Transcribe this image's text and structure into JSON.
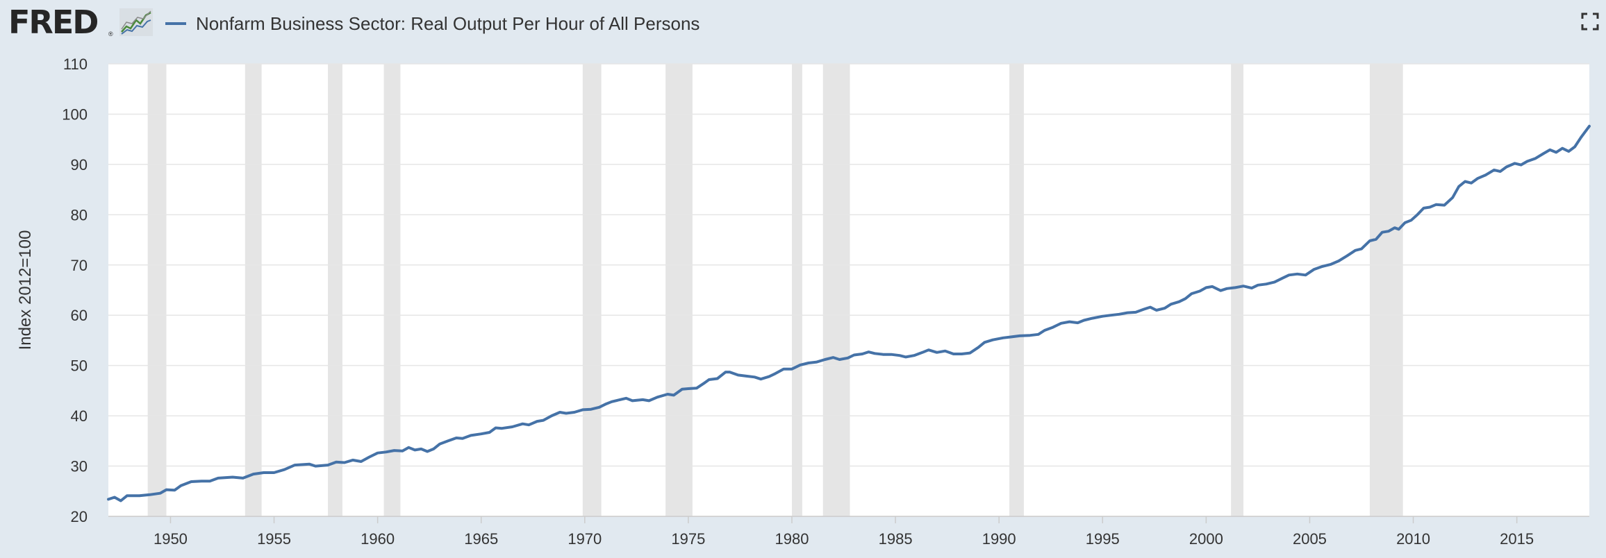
{
  "header": {
    "logo_text": "FRED",
    "logo_registered": "®",
    "logo_graph_icon": "line-chart-icon",
    "series_title": "Nonfarm Business Sector: Real Output Per Hour of All Persons",
    "fullscreen_icon": "fullscreen-icon"
  },
  "colors": {
    "background": "#e1e9f0",
    "plot_background": "#ffffff",
    "series_line": "#4572a7",
    "recession_shade": "#e5e5e5",
    "gridline": "#e6e6e6",
    "text": "#333333"
  },
  "chart_data": {
    "type": "line",
    "title": "",
    "xlabel": "",
    "ylabel": "Index 2012=100",
    "xlim": [
      1947.0,
      2018.5
    ],
    "ylim": [
      20,
      110
    ],
    "grid": true,
    "legend": "top-left",
    "y_ticks": [
      20,
      30,
      40,
      50,
      60,
      70,
      80,
      90,
      100,
      110
    ],
    "x_ticks": [
      1950,
      1955,
      1960,
      1965,
      1970,
      1975,
      1980,
      1985,
      1990,
      1995,
      2000,
      2005,
      2010,
      2015
    ],
    "recessions": [
      [
        1948.9,
        1949.8
      ],
      [
        1953.6,
        1954.4
      ],
      [
        1957.6,
        1958.3
      ],
      [
        1960.3,
        1961.1
      ],
      [
        1969.9,
        1970.8
      ],
      [
        1973.9,
        1975.2
      ],
      [
        1980.0,
        1980.5
      ],
      [
        1981.5,
        1982.8
      ],
      [
        1990.5,
        1991.2
      ],
      [
        2001.2,
        2001.8
      ],
      [
        2007.9,
        2009.5
      ]
    ],
    "series": [
      {
        "name": "Nonfarm Business Sector: Real Output Per Hour of All Persons",
        "points": [
          [
            1947.0,
            23.4
          ],
          [
            1947.3,
            23.8
          ],
          [
            1947.6,
            23.1
          ],
          [
            1947.9,
            24.1
          ],
          [
            1948.5,
            24.1
          ],
          [
            1949.0,
            24.3
          ],
          [
            1949.5,
            24.6
          ],
          [
            1949.8,
            25.3
          ],
          [
            1950.2,
            25.2
          ],
          [
            1950.5,
            26.1
          ],
          [
            1951.0,
            26.9
          ],
          [
            1951.5,
            27.0
          ],
          [
            1951.9,
            27.0
          ],
          [
            1952.3,
            27.6
          ],
          [
            1953.0,
            27.8
          ],
          [
            1953.5,
            27.6
          ],
          [
            1954.0,
            28.4
          ],
          [
            1954.5,
            28.7
          ],
          [
            1955.0,
            28.7
          ],
          [
            1955.5,
            29.3
          ],
          [
            1956.0,
            30.2
          ],
          [
            1956.7,
            30.4
          ],
          [
            1957.0,
            30.0
          ],
          [
            1957.6,
            30.2
          ],
          [
            1958.0,
            30.8
          ],
          [
            1958.4,
            30.7
          ],
          [
            1958.8,
            31.2
          ],
          [
            1959.2,
            30.9
          ],
          [
            1959.6,
            31.8
          ],
          [
            1960.0,
            32.6
          ],
          [
            1960.4,
            32.8
          ],
          [
            1960.8,
            33.1
          ],
          [
            1961.2,
            33.0
          ],
          [
            1961.5,
            33.7
          ],
          [
            1961.8,
            33.2
          ],
          [
            1962.1,
            33.4
          ],
          [
            1962.4,
            32.9
          ],
          [
            1962.7,
            33.4
          ],
          [
            1963.0,
            34.4
          ],
          [
            1963.4,
            35.0
          ],
          [
            1963.8,
            35.6
          ],
          [
            1964.1,
            35.5
          ],
          [
            1964.5,
            36.1
          ],
          [
            1965.0,
            36.4
          ],
          [
            1965.4,
            36.7
          ],
          [
            1965.7,
            37.6
          ],
          [
            1966.0,
            37.5
          ],
          [
            1966.5,
            37.8
          ],
          [
            1967.0,
            38.4
          ],
          [
            1967.3,
            38.2
          ],
          [
            1967.7,
            38.9
          ],
          [
            1968.0,
            39.1
          ],
          [
            1968.4,
            40.0
          ],
          [
            1968.8,
            40.7
          ],
          [
            1969.1,
            40.5
          ],
          [
            1969.5,
            40.7
          ],
          [
            1969.9,
            41.2
          ],
          [
            1970.3,
            41.3
          ],
          [
            1970.7,
            41.7
          ],
          [
            1971.0,
            42.3
          ],
          [
            1971.3,
            42.8
          ],
          [
            1971.7,
            43.2
          ],
          [
            1972.0,
            43.5
          ],
          [
            1972.3,
            43.0
          ],
          [
            1972.8,
            43.2
          ],
          [
            1973.1,
            43.0
          ],
          [
            1973.5,
            43.7
          ],
          [
            1974.0,
            44.3
          ],
          [
            1974.3,
            44.1
          ],
          [
            1974.7,
            45.3
          ],
          [
            1975.0,
            45.4
          ],
          [
            1975.4,
            45.5
          ],
          [
            1975.8,
            46.6
          ],
          [
            1976.0,
            47.2
          ],
          [
            1976.4,
            47.4
          ],
          [
            1976.8,
            48.7
          ],
          [
            1977.0,
            48.7
          ],
          [
            1977.4,
            48.1
          ],
          [
            1977.8,
            47.9
          ],
          [
            1978.2,
            47.7
          ],
          [
            1978.5,
            47.3
          ],
          [
            1978.9,
            47.8
          ],
          [
            1979.2,
            48.4
          ],
          [
            1979.6,
            49.3
          ],
          [
            1980.0,
            49.3
          ],
          [
            1980.4,
            50.1
          ],
          [
            1980.8,
            50.5
          ],
          [
            1981.2,
            50.7
          ],
          [
            1981.6,
            51.2
          ],
          [
            1982.0,
            51.6
          ],
          [
            1982.3,
            51.2
          ],
          [
            1982.7,
            51.5
          ],
          [
            1983.0,
            52.1
          ],
          [
            1983.4,
            52.3
          ],
          [
            1983.7,
            52.7
          ],
          [
            1984.0,
            52.4
          ],
          [
            1984.4,
            52.2
          ],
          [
            1984.8,
            52.2
          ],
          [
            1985.2,
            52.0
          ],
          [
            1985.5,
            51.7
          ],
          [
            1985.9,
            52.0
          ],
          [
            1986.3,
            52.6
          ],
          [
            1986.6,
            53.1
          ],
          [
            1987.0,
            52.6
          ],
          [
            1987.4,
            52.9
          ],
          [
            1987.8,
            52.3
          ],
          [
            1988.2,
            52.3
          ],
          [
            1988.6,
            52.5
          ],
          [
            1989.0,
            53.6
          ],
          [
            1989.3,
            54.6
          ],
          [
            1989.7,
            55.1
          ],
          [
            1990.2,
            55.5
          ],
          [
            1990.6,
            55.7
          ],
          [
            1991.0,
            55.9
          ],
          [
            1991.5,
            56.0
          ],
          [
            1991.9,
            56.2
          ],
          [
            1992.2,
            57.0
          ],
          [
            1992.6,
            57.6
          ],
          [
            1993.0,
            58.4
          ],
          [
            1993.4,
            58.7
          ],
          [
            1993.8,
            58.5
          ],
          [
            1994.1,
            59.0
          ],
          [
            1994.5,
            59.4
          ],
          [
            1995.0,
            59.8
          ],
          [
            1995.4,
            60.0
          ],
          [
            1995.8,
            60.2
          ],
          [
            1996.2,
            60.5
          ],
          [
            1996.6,
            60.6
          ],
          [
            1997.0,
            61.2
          ],
          [
            1997.3,
            61.6
          ],
          [
            1997.6,
            61.0
          ],
          [
            1998.0,
            61.4
          ],
          [
            1998.3,
            62.2
          ],
          [
            1998.7,
            62.7
          ],
          [
            1999.0,
            63.3
          ],
          [
            1999.3,
            64.3
          ],
          [
            1999.7,
            64.8
          ],
          [
            2000.0,
            65.5
          ],
          [
            2000.3,
            65.7
          ],
          [
            2000.7,
            64.9
          ],
          [
            2001.0,
            65.3
          ],
          [
            2001.4,
            65.5
          ],
          [
            2001.8,
            65.8
          ],
          [
            2002.2,
            65.4
          ],
          [
            2002.5,
            66.0
          ],
          [
            2002.9,
            66.2
          ],
          [
            2003.3,
            66.6
          ],
          [
            2003.7,
            67.4
          ],
          [
            2004.0,
            68.0
          ],
          [
            2004.4,
            68.2
          ],
          [
            2004.8,
            68.0
          ],
          [
            2005.2,
            69.1
          ],
          [
            2005.6,
            69.7
          ],
          [
            2006.0,
            70.1
          ],
          [
            2006.4,
            70.8
          ],
          [
            2006.8,
            71.8
          ],
          [
            2007.2,
            72.9
          ],
          [
            2007.5,
            73.2
          ],
          [
            2007.9,
            74.8
          ],
          [
            2008.2,
            75.1
          ],
          [
            2008.5,
            76.5
          ],
          [
            2008.8,
            76.7
          ],
          [
            2009.1,
            77.4
          ],
          [
            2009.3,
            77.1
          ],
          [
            2009.6,
            78.4
          ],
          [
            2009.9,
            78.9
          ],
          [
            2010.2,
            80.0
          ],
          [
            2010.5,
            81.3
          ],
          [
            2010.8,
            81.5
          ],
          [
            2011.1,
            82.0
          ],
          [
            2011.5,
            81.9
          ],
          [
            2011.9,
            83.4
          ],
          [
            2012.2,
            85.6
          ],
          [
            2012.5,
            86.6
          ],
          [
            2012.8,
            86.3
          ],
          [
            2013.1,
            87.2
          ],
          [
            2013.5,
            87.9
          ],
          [
            2013.9,
            88.9
          ],
          [
            2014.2,
            88.6
          ],
          [
            2014.5,
            89.5
          ],
          [
            2014.9,
            90.2
          ],
          [
            2015.2,
            89.9
          ],
          [
            2015.5,
            90.6
          ],
          [
            2015.9,
            91.2
          ],
          [
            2016.3,
            92.2
          ],
          [
            2016.6,
            92.9
          ],
          [
            2016.9,
            92.4
          ],
          [
            2017.2,
            93.2
          ],
          [
            2017.5,
            92.6
          ],
          [
            2017.8,
            93.5
          ],
          [
            2018.1,
            95.4
          ],
          [
            2018.5,
            97.6
          ]
        ]
      }
    ]
  }
}
